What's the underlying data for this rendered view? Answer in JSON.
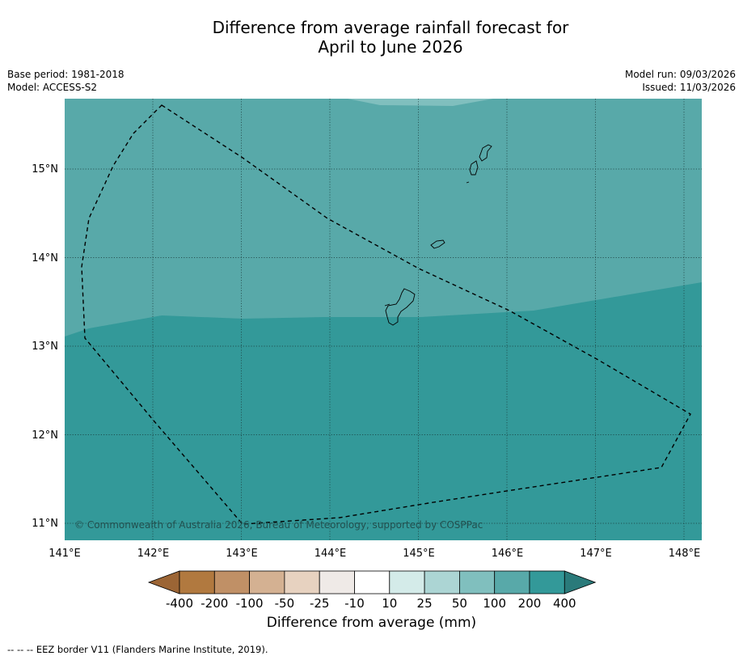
{
  "title_line1": "Difference from average rainfall forecast for",
  "title_line2": "April to June 2026",
  "base_period": "Base period: 1981-2018",
  "model": "Model: ACCESS-S2",
  "model_run": "Model run: 09/03/2026",
  "issued": "Issued: 11/03/2026",
  "copyright": "© Commonwealth of Australia 2026, Bureau of Meteorology, supported by COSPPac",
  "lon_labels": [
    "141°E",
    "142°E",
    "143°E",
    "144°E",
    "145°E",
    "146°E",
    "147°E",
    "148°E"
  ],
  "lat_labels": [
    "15°N",
    "14°N",
    "13°N",
    "12°N",
    "11°N"
  ],
  "colorbar": {
    "title": "Difference from average (mm)",
    "ticks": [
      "-400",
      "-200",
      "-100",
      "-50",
      "-25",
      "-10",
      "10",
      "25",
      "50",
      "100",
      "200",
      "400"
    ],
    "colors": [
      "#9c6535",
      "#b1793f",
      "#c09066",
      "#d4b192",
      "#e7d2c0",
      "#efeae7",
      "#ffffff",
      "#d4ebe9",
      "#acd5d4",
      "#80bfbe",
      "#58a9a9",
      "#339999",
      "#2a7a7a"
    ]
  },
  "zones": {
    "color_100_200": "#58a9a9",
    "color_200_400": "#339999",
    "color_50_100": "#80bfbe"
  },
  "footnote": "--  --  -- EEZ border V11 (Flanders Marine Institute, 2019)."
}
